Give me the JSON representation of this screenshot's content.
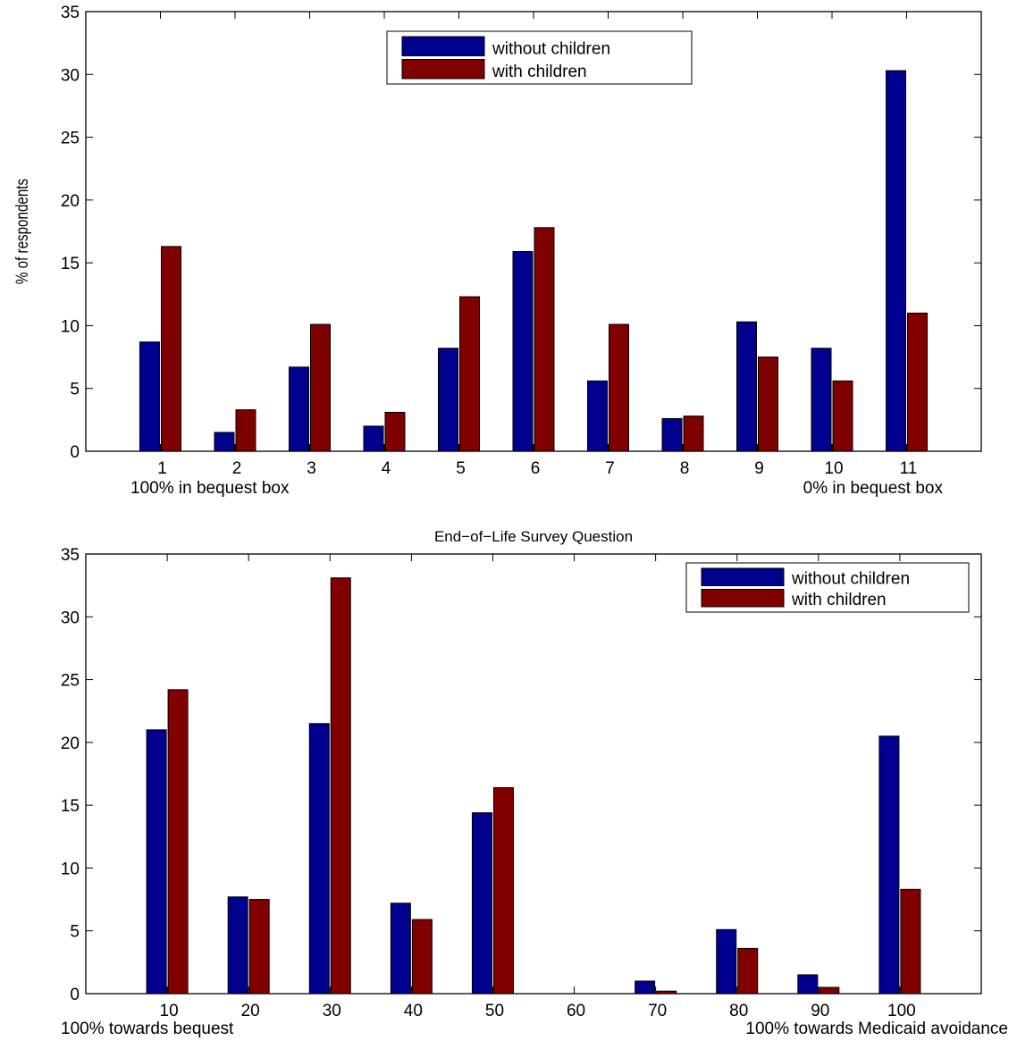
{
  "chart_data": [
    {
      "type": "bar",
      "title": "",
      "xlabel": "",
      "ylabel": "% of respondents",
      "ylim": [
        0,
        35
      ],
      "yticks": [
        0,
        5,
        10,
        15,
        20,
        25,
        30,
        35
      ],
      "categories": [
        "1",
        "2",
        "3",
        "4",
        "5",
        "6",
        "7",
        "8",
        "9",
        "10",
        "11"
      ],
      "series": [
        {
          "name": "without children",
          "color": "#00008f",
          "values": [
            8.7,
            1.5,
            6.7,
            2.0,
            8.2,
            15.9,
            5.6,
            2.6,
            10.3,
            8.2,
            30.3
          ]
        },
        {
          "name": "with children",
          "color": "#800000",
          "values": [
            16.3,
            3.3,
            10.1,
            3.1,
            12.3,
            17.8,
            10.1,
            2.8,
            7.5,
            5.6,
            11.0
          ]
        }
      ],
      "legend_position": "top-center",
      "annotation_left": "100% in bequest box",
      "annotation_right": "0% in bequest box"
    },
    {
      "type": "bar",
      "title": "End−of−Life Survey Question",
      "xlabel": "",
      "ylabel": "",
      "ylim": [
        0,
        35
      ],
      "yticks": [
        0,
        5,
        10,
        15,
        20,
        25,
        30,
        35
      ],
      "categories": [
        "10",
        "20",
        "30",
        "40",
        "50",
        "60",
        "70",
        "80",
        "90",
        "100"
      ],
      "series": [
        {
          "name": "without children",
          "color": "#00008f",
          "values": [
            21.0,
            7.7,
            21.5,
            7.2,
            14.4,
            0.0,
            1.0,
            5.1,
            1.5,
            20.5
          ]
        },
        {
          "name": "with children",
          "color": "#800000",
          "values": [
            24.2,
            7.5,
            33.1,
            5.9,
            16.4,
            0.0,
            0.2,
            3.6,
            0.5,
            8.3
          ]
        }
      ],
      "legend_position": "top-right",
      "annotation_left": "100% towards bequest",
      "annotation_right": "100% towards Medicaid avoidance"
    }
  ]
}
